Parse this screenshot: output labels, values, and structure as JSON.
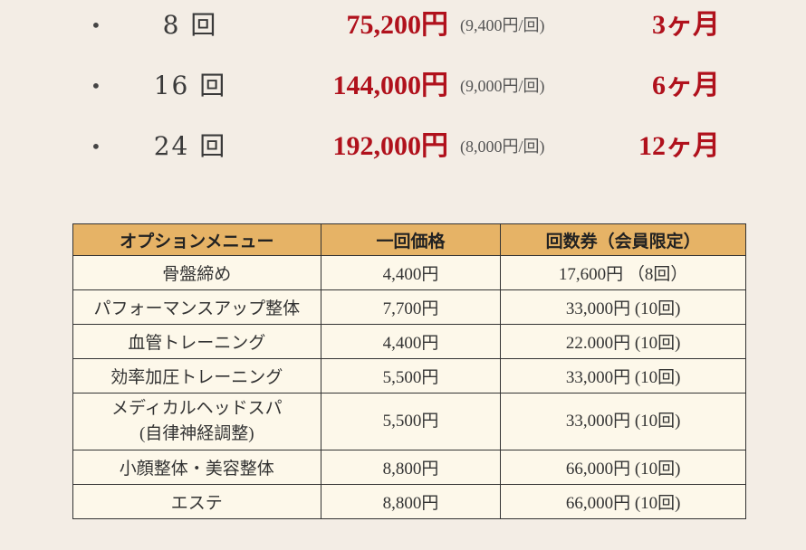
{
  "plans": [
    {
      "count": "8 回",
      "price": "75,200円",
      "per": "(9,400円/回)",
      "period": "3ヶ月"
    },
    {
      "count": "16 回",
      "price": "144,000円",
      "per": "(9,000円/回)",
      "period": "6ヶ月"
    },
    {
      "count": "24 回",
      "price": "192,000円",
      "per": "(8,000円/回)",
      "period": "12ヶ月"
    }
  ],
  "bullet": "•",
  "table": {
    "headers": [
      "オプションメニュー",
      "一回価格",
      "回数券（会員限定）"
    ],
    "rows": [
      [
        "骨盤締め",
        "4,400円",
        "17,600円 （8回）"
      ],
      [
        "パフォーマンスアップ整体",
        "7,700円",
        "33,000円 (10回)"
      ],
      [
        "血管トレーニング",
        "4,400円",
        "22.000円 (10回)"
      ],
      [
        "効率加圧トレーニング",
        "5,500円",
        "33,000円 (10回)"
      ],
      [
        "メディカルヘッドスパ\n(自律神経調整)",
        "5,500円",
        "33,000円 (10回)"
      ],
      [
        "小顔整体・美容整体",
        "8,800円",
        "66,000円 (10回)"
      ],
      [
        "エステ",
        "8,800円",
        "66,000円 (10回)"
      ]
    ]
  },
  "colors": {
    "accent": "#b0111c",
    "header": "#e6b366",
    "background": "#f3ede5",
    "cell": "#fdf8ea"
  }
}
